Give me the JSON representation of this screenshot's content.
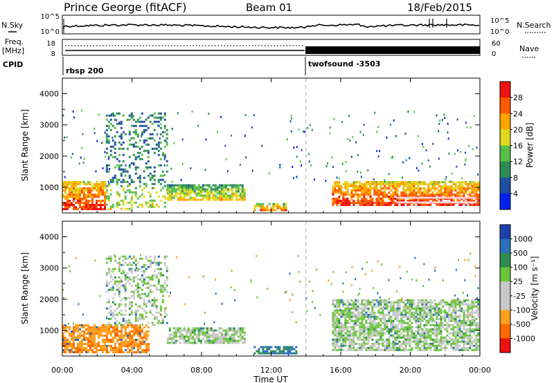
{
  "header": {
    "station": "Prince George (fitACF)",
    "beam": "Beam 01",
    "date": "18/Feb/2015"
  },
  "top_panels": {
    "nsky": {
      "label": "N.Sky",
      "ticks": [
        "10^5",
        "10^0"
      ]
    },
    "nsearch": {
      "label": "N.Search",
      "ticks": [
        "10^5",
        "10^0"
      ]
    },
    "freq": {
      "label": "Freq.",
      "unit": "[MHz]",
      "ticks": [
        "18",
        "8"
      ]
    },
    "nave": {
      "label": "Nave",
      "ticks": [
        "60",
        "0"
      ]
    },
    "cpid": {
      "label": "CPID",
      "programs": [
        {
          "name": "rbsp 200",
          "start_hour": 0
        },
        {
          "name": "twofsound -3503",
          "start_hour": 14
        }
      ]
    }
  },
  "x_axis": {
    "label": "Time UT",
    "ticks": [
      "00:00",
      "04:00",
      "08:00",
      "12:00",
      "16:00",
      "20:00",
      "00:00"
    ]
  },
  "colors": {
    "power_scale": [
      "#0022ee",
      "#1e4fa0",
      "#2e8b57",
      "#56c04a",
      "#e0d820",
      "#ffa500",
      "#ff5a00",
      "#ee1111"
    ],
    "velocity_scale": [
      "#1c3fa8",
      "#2a6fb8",
      "#2f8a50",
      "#6cc63c",
      "#c8c8c8",
      "#c8c8c8",
      "#ffa020",
      "#ff6a00",
      "#ee1111"
    ],
    "mode_divider": "#bbbbbb"
  },
  "chart_data": [
    {
      "type": "heatmap",
      "title": "",
      "xlabel": "",
      "ylabel": "Slant Range [km]",
      "xlim": [
        0,
        24
      ],
      "ylim": [
        180,
        4500
      ],
      "y_ticks": [
        "1000",
        "2000",
        "3000",
        "4000"
      ],
      "colorbar": {
        "label": "Power [dB]",
        "ticks": [
          "28",
          "24",
          "20",
          "16",
          "12",
          "8",
          "4"
        ]
      },
      "echo_regions": [
        {
          "t_start": 0.0,
          "t_end": 2.5,
          "range_min": 300,
          "range_max": 1200,
          "typical_db": 26
        },
        {
          "t_start": 2.5,
          "t_end": 6.0,
          "range_min": 300,
          "range_max": 3400,
          "typical_db": 14
        },
        {
          "t_start": 6.0,
          "t_end": 10.5,
          "range_min": 600,
          "range_max": 1100,
          "typical_db": 18
        },
        {
          "t_start": 11.0,
          "t_end": 12.8,
          "range_min": 300,
          "range_max": 500,
          "typical_db": 22
        },
        {
          "t_start": 15.5,
          "t_end": 24.0,
          "range_min": 450,
          "range_max": 1200,
          "typical_db": 26
        }
      ]
    },
    {
      "type": "heatmap",
      "title": "",
      "xlabel": "Time UT",
      "ylabel": "Slant Range [km]",
      "xlim": [
        0,
        24
      ],
      "ylim": [
        180,
        4500
      ],
      "y_ticks": [
        "1000",
        "2000",
        "3000",
        "4000"
      ],
      "colorbar": {
        "label": "Velocity [m s⁻¹]",
        "ticks": [
          "1000",
          "500",
          "100",
          "25",
          "-25",
          "-100",
          "-500",
          "-1000"
        ]
      },
      "echo_regions": [
        {
          "t_start": 0.0,
          "t_end": 5.0,
          "range_min": 300,
          "range_max": 1200,
          "typical_velocity": -300
        },
        {
          "t_start": 2.5,
          "t_end": 6.0,
          "range_min": 1200,
          "range_max": 3400,
          "typical_velocity": 0
        },
        {
          "t_start": 6.0,
          "t_end": 10.5,
          "range_min": 600,
          "range_max": 1100,
          "typical_velocity": 0
        },
        {
          "t_start": 11.0,
          "t_end": 13.5,
          "range_min": 300,
          "range_max": 500,
          "typical_velocity": 100
        },
        {
          "t_start": 15.5,
          "t_end": 24.0,
          "range_min": 400,
          "range_max": 2000,
          "typical_velocity": 0
        }
      ]
    }
  ]
}
